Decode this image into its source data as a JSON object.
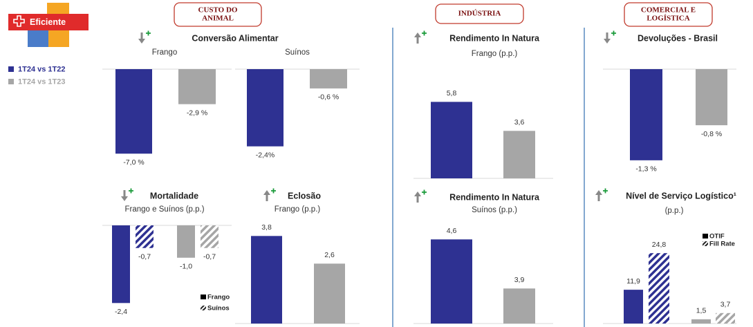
{
  "logo": {
    "text": "Eficiente"
  },
  "sections": [
    {
      "lines": [
        "CUSTO DO",
        "ANIMAL"
      ]
    },
    {
      "lines": [
        "INDÚSTRIA"
      ]
    },
    {
      "lines": [
        "COMERCIAL E",
        "LOGÍSTICA"
      ]
    }
  ],
  "chart_data": [
    {
      "type": "bar",
      "title": "Conversão Alimentar",
      "subtitle": "Frango",
      "ylim": [
        -7.5,
        0
      ],
      "series": [
        {
          "name": "1T24 vs 1T22",
          "color": "#2e3192",
          "values": [
            -7.0
          ],
          "value_labels": [
            "-7,0 %"
          ]
        },
        {
          "name": "1T24 vs 1T23",
          "color": "#a6a6a6",
          "values": [
            -2.9
          ],
          "value_labels": [
            "-2,9 %"
          ]
        }
      ]
    },
    {
      "type": "bar",
      "subtitle": "Suínos",
      "ylim": [
        -2.6,
        0
      ],
      "series": [
        {
          "color": "#2e3192",
          "values": [
            -2.4
          ],
          "value_labels": [
            "-2,4%"
          ]
        },
        {
          "color": "#a6a6a6",
          "values": [
            -0.6
          ],
          "value_labels": [
            "-0,6 %"
          ]
        }
      ]
    },
    {
      "type": "bar",
      "title": "Mortalidade",
      "subtitle": "Frango e Suínos (p.p.)",
      "ylim": [
        -2.5,
        0
      ],
      "colors": [
        "#2e3192",
        "#a6a6a6"
      ],
      "series": [
        {
          "name": "Frango",
          "color": "#000000",
          "pattern": "solid",
          "values": [
            -2.4,
            -1.0
          ],
          "value_labels": [
            "-2,4",
            "-1,0"
          ]
        },
        {
          "name": "Suínos",
          "color": "#000000",
          "pattern": "hatch",
          "values": [
            -0.7,
            -0.7
          ],
          "value_labels": [
            "-0,7",
            "-0,7"
          ]
        }
      ]
    },
    {
      "type": "bar",
      "title": "Eclosão",
      "subtitle": "Frango (p.p.)",
      "ylim": [
        0,
        4.2
      ],
      "series": [
        {
          "color": "#2e3192",
          "values": [
            3.8
          ],
          "value_labels": [
            "3,8"
          ]
        },
        {
          "color": "#a6a6a6",
          "values": [
            2.6
          ],
          "value_labels": [
            "2,6"
          ]
        }
      ]
    },
    {
      "type": "bar",
      "title": "Rendimento In Natura",
      "subtitle": "Frango (p.p.)",
      "ylim": [
        0,
        6.5
      ],
      "series": [
        {
          "color": "#2e3192",
          "values": [
            5.8
          ],
          "value_labels": [
            "5,8"
          ]
        },
        {
          "color": "#a6a6a6",
          "values": [
            3.6
          ],
          "value_labels": [
            "3,6"
          ]
        }
      ]
    },
    {
      "type": "bar",
      "title": "Rendimento In Natura",
      "subtitle": "Suínos (p.p.)",
      "ylim": [
        3.4,
        4.8
      ],
      "series": [
        {
          "color": "#2e3192",
          "values": [
            4.6
          ],
          "value_labels": [
            "4,6"
          ]
        },
        {
          "color": "#a6a6a6",
          "values": [
            3.9
          ],
          "value_labels": [
            "3,9"
          ]
        }
      ]
    },
    {
      "type": "bar",
      "title": "Devoluções - Brasil",
      "ylim": [
        -1.4,
        0
      ],
      "series": [
        {
          "color": "#2e3192",
          "values": [
            -1.3
          ],
          "value_labels": [
            "-1,3 %"
          ]
        },
        {
          "color": "#a6a6a6",
          "values": [
            -0.8
          ],
          "value_labels": [
            "-0,8 %"
          ]
        }
      ]
    },
    {
      "type": "bar",
      "title": "Nível de Serviço Logístico¹",
      "subtitle": "(p.p.)",
      "ylim": [
        0,
        28
      ],
      "colors": [
        "#2e3192",
        "#a6a6a6"
      ],
      "series": [
        {
          "name": "OTIF",
          "color": "#000000",
          "pattern": "solid",
          "values": [
            11.9,
            1.5
          ],
          "value_labels": [
            "11,9",
            "1,5"
          ]
        },
        {
          "name": "Fill Rate",
          "color": "#000000",
          "pattern": "hatch",
          "values": [
            24.8,
            3.7
          ],
          "value_labels": [
            "24,8",
            "3,7"
          ]
        }
      ]
    }
  ]
}
